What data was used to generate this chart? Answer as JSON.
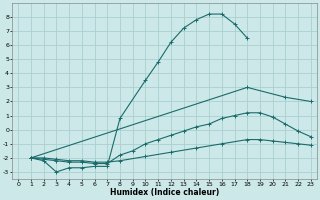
{
  "xlabel": "Humidex (Indice chaleur)",
  "xlim": [
    -0.5,
    23.5
  ],
  "ylim": [
    -3.5,
    9.0
  ],
  "yticks": [
    -3,
    -2,
    -1,
    0,
    1,
    2,
    3,
    4,
    5,
    6,
    7,
    8
  ],
  "xticks": [
    0,
    1,
    2,
    3,
    4,
    5,
    6,
    7,
    8,
    9,
    10,
    11,
    12,
    13,
    14,
    15,
    16,
    17,
    18,
    19,
    20,
    21,
    22,
    23
  ],
  "bg_color": "#cce8e8",
  "grid_color": "#aacfcf",
  "line_color": "#1a6b6b",
  "line1_x": [
    1,
    2,
    3,
    4,
    5,
    6,
    7,
    8,
    10,
    11,
    12,
    13,
    14,
    15,
    16,
    17,
    18
  ],
  "line1_y": [
    -2.0,
    -2.2,
    -3.0,
    -2.7,
    -2.7,
    -2.6,
    -2.6,
    0.8,
    3.5,
    4.8,
    6.2,
    7.2,
    7.8,
    8.2,
    8.2,
    7.5,
    6.5
  ],
  "line2_x": [
    1,
    2,
    3,
    4,
    5,
    6,
    7,
    8,
    10,
    12,
    14,
    16,
    18,
    19,
    20,
    21,
    22,
    23
  ],
  "line2_y": [
    -2.0,
    -2.0,
    -2.1,
    -2.2,
    -2.2,
    -2.3,
    -2.3,
    -2.2,
    -1.9,
    -1.6,
    -1.3,
    -1.0,
    -0.7,
    -0.7,
    -0.8,
    -0.9,
    -1.0,
    -1.1
  ],
  "line3_x": [
    1,
    2,
    3,
    4,
    5,
    6,
    7,
    8,
    9,
    10,
    11,
    12,
    13,
    14,
    15,
    16,
    17,
    18,
    19,
    20,
    21,
    22,
    23
  ],
  "line3_y": [
    -2.0,
    -2.1,
    -2.2,
    -2.3,
    -2.3,
    -2.4,
    -2.4,
    -1.8,
    -1.5,
    -1.0,
    -0.7,
    -0.4,
    -0.1,
    0.2,
    0.4,
    0.8,
    1.0,
    1.2,
    1.2,
    0.9,
    0.4,
    -0.1,
    -0.5
  ],
  "line4_x": [
    1,
    18,
    21,
    23
  ],
  "line4_y": [
    -2.0,
    3.0,
    2.3,
    2.0
  ]
}
